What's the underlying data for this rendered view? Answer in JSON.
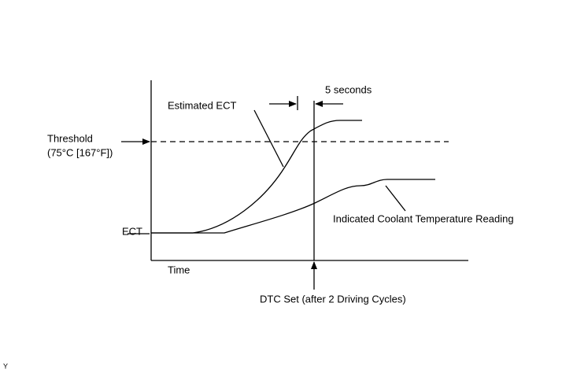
{
  "diagram": {
    "labels": {
      "five_seconds": "5 seconds",
      "estimated_ect": "Estimated ECT",
      "threshold": "Threshold",
      "threshold_value": "(75°C [167°F])",
      "ect": "ECT",
      "time": "Time",
      "indicated": "Indicated Coolant Temperature Reading",
      "dtc_set": "DTC Set (after 2 Driving Cycles)",
      "corner": "Y"
    }
  }
}
